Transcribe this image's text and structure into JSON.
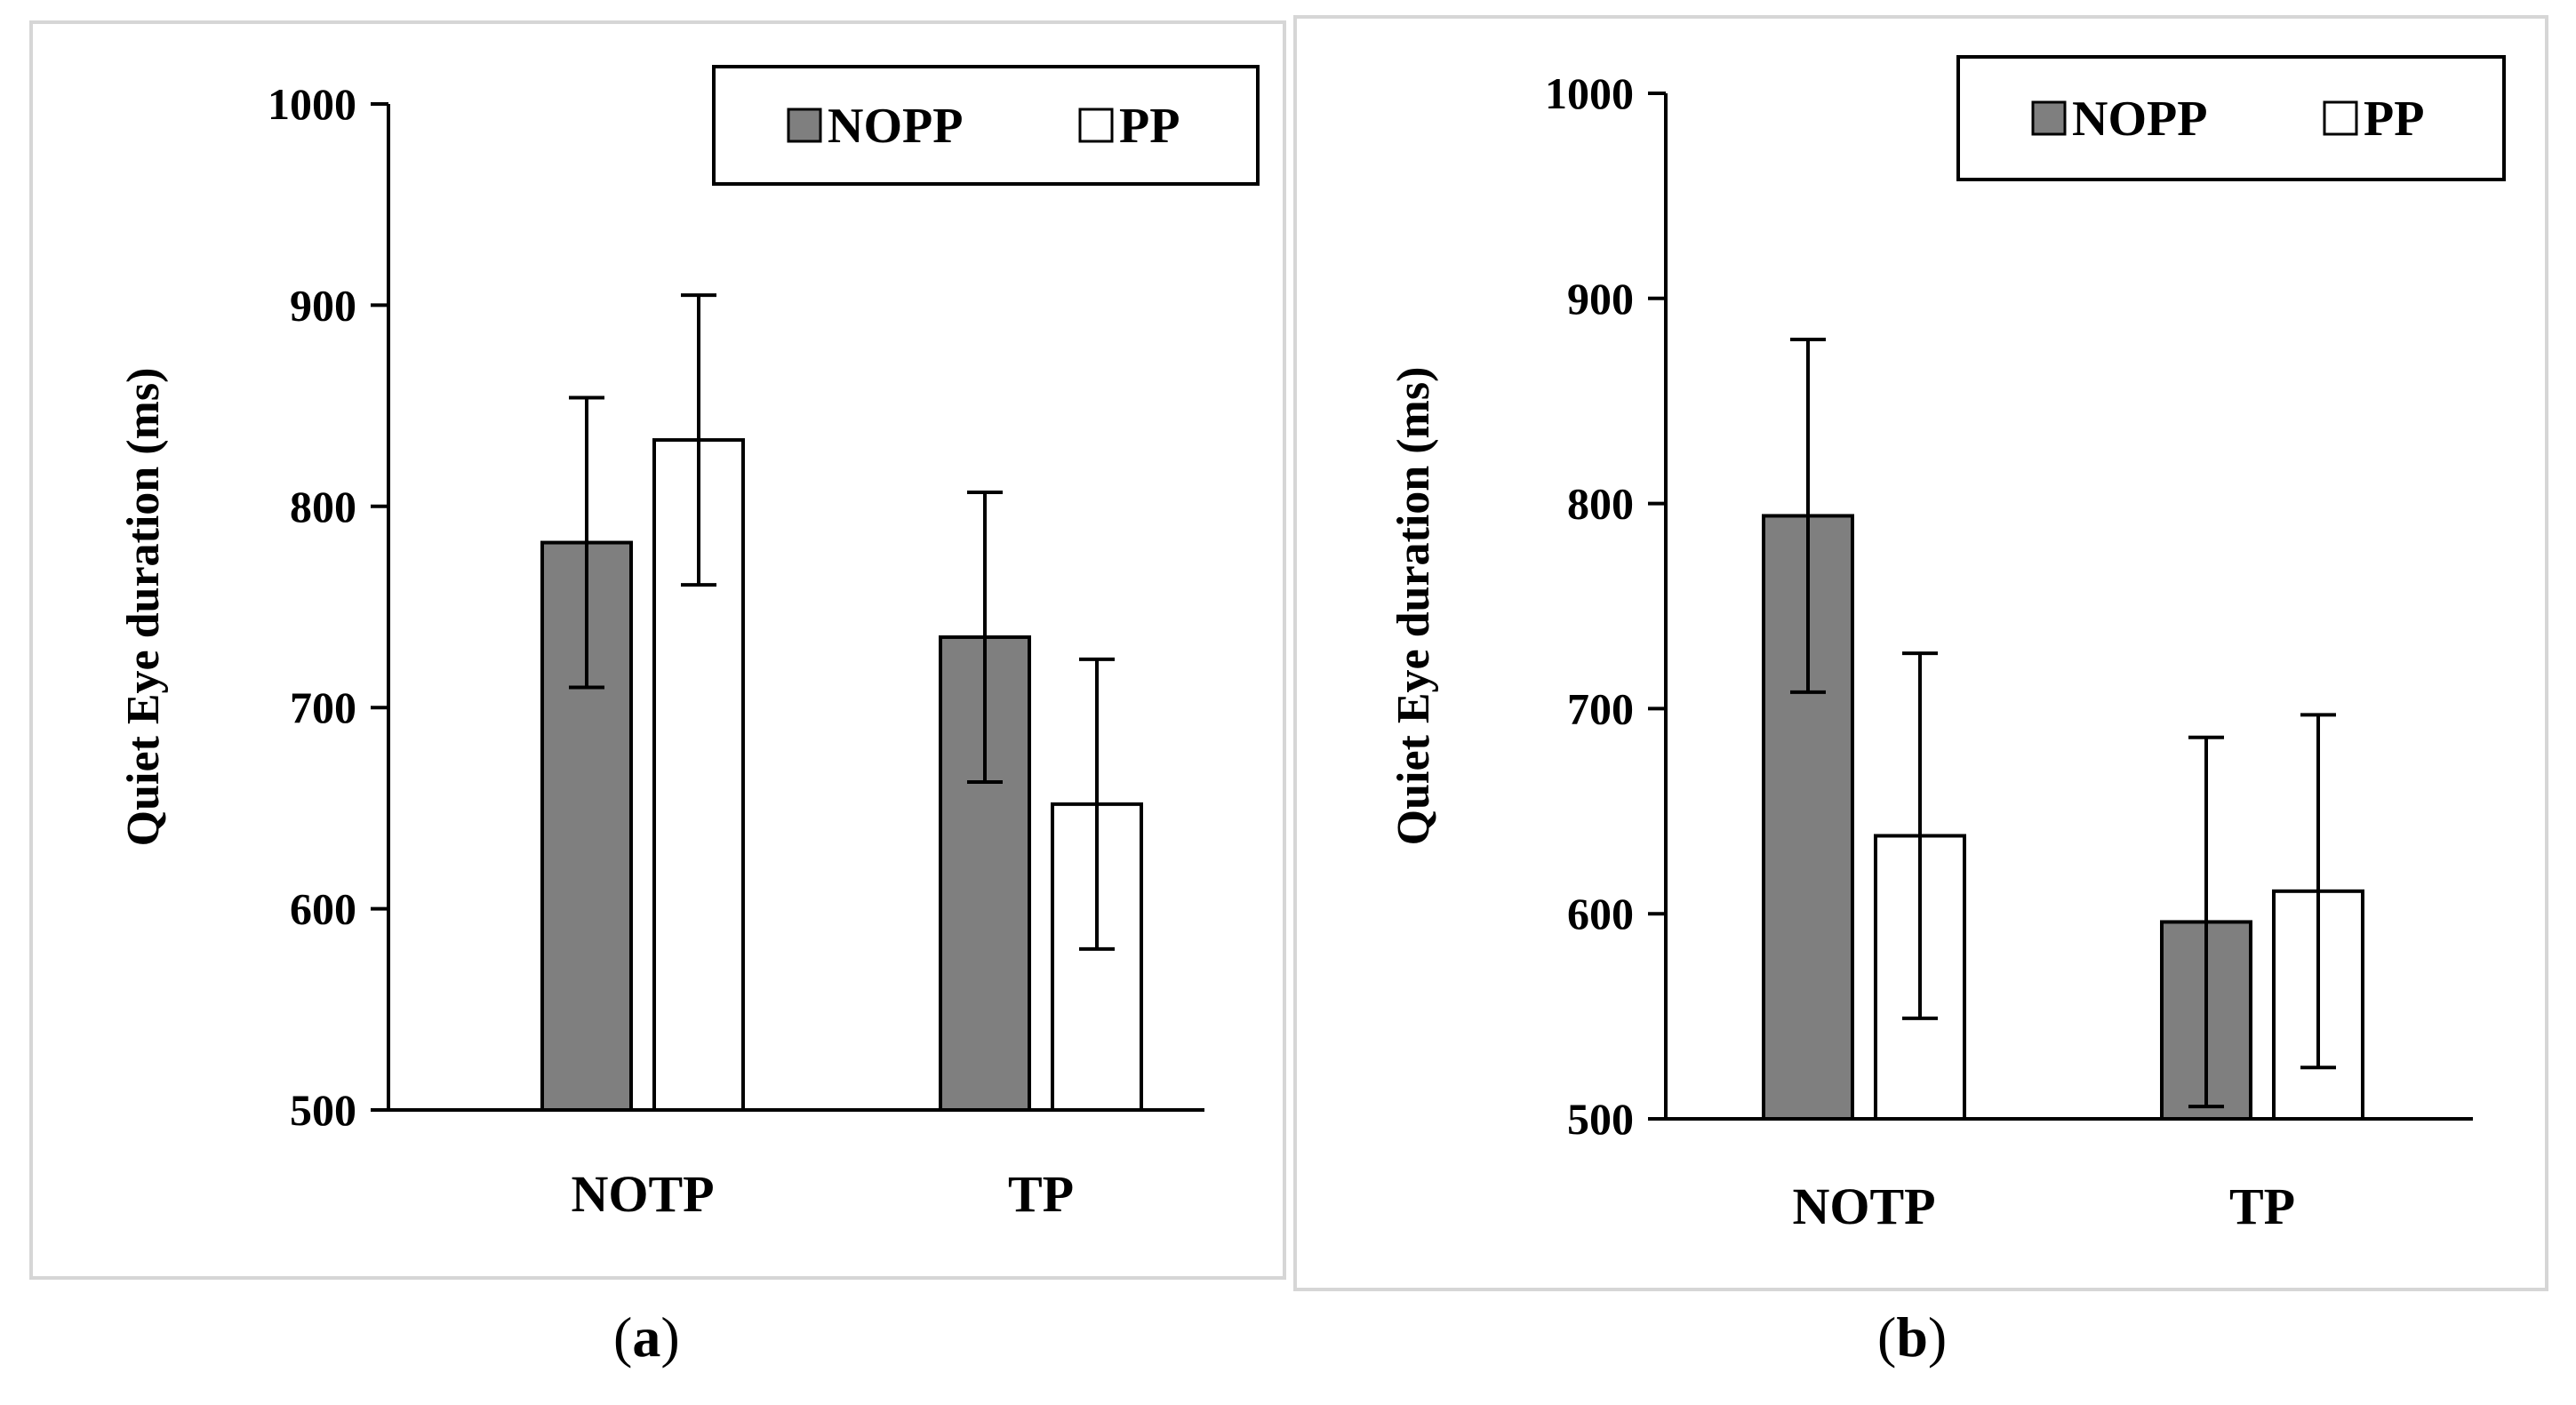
{
  "colors": {
    "nopp": "#7f7f7f",
    "pp": "#ffffff",
    "stroke": "#000000"
  },
  "legend": {
    "nopp_label": "NOPP",
    "pp_label": "PP"
  },
  "chart_data": [
    {
      "id": "a",
      "type": "bar",
      "caption": {
        "open": "(",
        "letter": "a",
        "close": ")"
      },
      "ylabel": "Quiet Eye duration (ms)",
      "xlabel": "",
      "ylim": [
        500,
        1000
      ],
      "yticks": [
        500,
        600,
        700,
        800,
        900,
        1000
      ],
      "categories": [
        "NOTP",
        "TP"
      ],
      "series": [
        {
          "name": "NOPP",
          "values": [
            782,
            735
          ],
          "errors": [
            72,
            72
          ]
        },
        {
          "name": "PP",
          "values": [
            833,
            652
          ],
          "errors": [
            72,
            72
          ]
        }
      ],
      "legend_position": "top-right"
    },
    {
      "id": "b",
      "type": "bar",
      "caption": {
        "open": "(",
        "letter": "b",
        "close": ")"
      },
      "ylabel": "Quiet Eye duration (ms)",
      "xlabel": "",
      "ylim": [
        500,
        1000
      ],
      "yticks": [
        500,
        600,
        700,
        800,
        900,
        1000
      ],
      "categories": [
        "NOTP",
        "TP"
      ],
      "series": [
        {
          "name": "NOPP",
          "values": [
            794,
            596
          ],
          "errors": [
            86,
            90
          ]
        },
        {
          "name": "PP",
          "values": [
            638,
            611
          ],
          "errors": [
            89,
            86
          ]
        }
      ],
      "legend_position": "top-right"
    }
  ]
}
